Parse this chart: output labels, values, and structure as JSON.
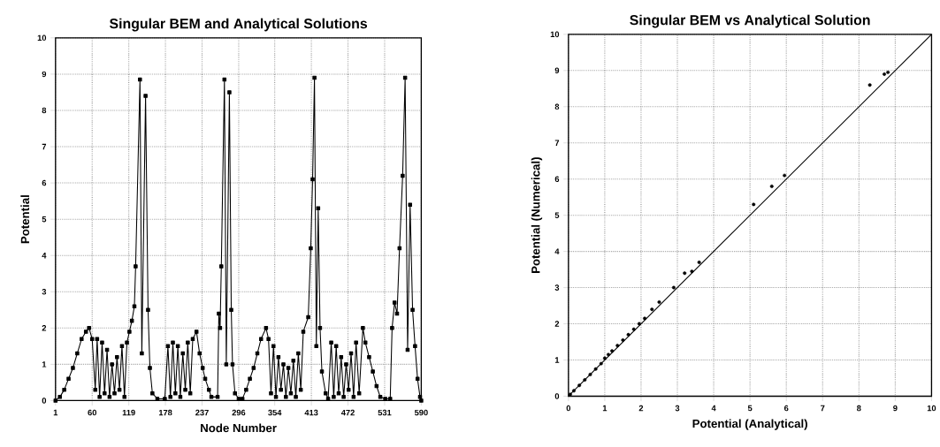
{
  "chart_data": [
    {
      "type": "line",
      "title": "Singular BEM and Analytical Solutions",
      "xlabel": "Node Number",
      "ylabel": "Potential",
      "xlim": [
        1,
        590
      ],
      "ylim": [
        0,
        10
      ],
      "xticks": [
        1,
        60,
        119,
        178,
        237,
        296,
        354,
        413,
        472,
        531,
        590
      ],
      "yticks": [
        0,
        1,
        2,
        3,
        4,
        5,
        6,
        7,
        8,
        9,
        10
      ],
      "grid": true,
      "marker": "square",
      "line_style": "solid",
      "series": [
        {
          "color": "#000000",
          "x": [
            1,
            8,
            15,
            22,
            29,
            36,
            43,
            50,
            55,
            60,
            65,
            68,
            72,
            76,
            80,
            84,
            88,
            92,
            96,
            100,
            104,
            108,
            112,
            116,
            120,
            124,
            128,
            130,
            137,
            140,
            146,
            150,
            153,
            157,
            165,
            177,
            182,
            186,
            190,
            194,
            198,
            202,
            206,
            210,
            214,
            218,
            222,
            228,
            233,
            238,
            242,
            248,
            252,
            262,
            264,
            266,
            268,
            273,
            276,
            281,
            284,
            286,
            290,
            296,
            302,
            308,
            314,
            320,
            326,
            332,
            340,
            344,
            348,
            352,
            356,
            360,
            364,
            368,
            372,
            376,
            380,
            384,
            388,
            392,
            396,
            400,
            408,
            412,
            415,
            418,
            421,
            424,
            427,
            430,
            436,
            440,
            445,
            449,
            453,
            457,
            461,
            465,
            469,
            473,
            477,
            481,
            485,
            490,
            496,
            500,
            506,
            512,
            518,
            524,
            532,
            540,
            543,
            547,
            551,
            555,
            560,
            564,
            568,
            572,
            576,
            580,
            584,
            588,
            590
          ],
          "values": [
            0,
            0.1,
            0.3,
            0.6,
            0.9,
            1.3,
            1.7,
            1.9,
            2.0,
            1.7,
            0.3,
            1.7,
            0.1,
            1.6,
            0.2,
            1.4,
            0.1,
            1.0,
            0.2,
            1.2,
            0.3,
            1.5,
            0.1,
            1.6,
            1.9,
            2.2,
            2.6,
            3.7,
            8.85,
            1.3,
            8.4,
            2.5,
            0.9,
            0.2,
            0.05,
            0.05,
            1.5,
            0.1,
            1.6,
            0.2,
            1.5,
            0.1,
            1.3,
            0.3,
            1.6,
            0.2,
            1.7,
            1.9,
            1.3,
            0.9,
            0.6,
            0.3,
            0.1,
            0.1,
            2.4,
            2.0,
            3.7,
            8.85,
            1.0,
            8.5,
            2.5,
            1.0,
            0.2,
            0.05,
            0.05,
            0.3,
            0.6,
            0.9,
            1.3,
            1.7,
            2.0,
            1.7,
            0.2,
            1.5,
            0.1,
            1.2,
            0.3,
            1.0,
            0.1,
            0.9,
            0.2,
            1.1,
            0.1,
            1.3,
            0.3,
            1.9,
            2.3,
            4.2,
            6.1,
            8.9,
            1.5,
            5.3,
            2.0,
            0.8,
            0.2,
            0.05,
            1.6,
            0.1,
            1.5,
            0.2,
            1.2,
            0.1,
            1.0,
            0.3,
            1.3,
            0.1,
            1.6,
            0.2,
            2.0,
            1.6,
            1.2,
            0.8,
            0.4,
            0.1,
            0.05,
            0.05,
            2.0,
            2.7,
            2.4,
            4.2,
            6.2,
            8.9,
            1.4,
            5.4,
            2.5,
            1.5,
            0.6,
            0.1,
            0
          ]
        }
      ]
    },
    {
      "type": "scatter",
      "title": "Singular BEM vs Analytical Solution",
      "xlabel": "Potential (Analytical)",
      "ylabel": "Potential (Numerical)",
      "xlim": [
        0,
        10
      ],
      "ylim": [
        0,
        10
      ],
      "xticks": [
        0,
        1,
        2,
        3,
        4,
        5,
        6,
        7,
        8,
        9,
        10
      ],
      "yticks": [
        0,
        1,
        2,
        3,
        4,
        5,
        6,
        7,
        8,
        9,
        10
      ],
      "grid": true,
      "marker": "circle",
      "series": [
        {
          "color": "#000000",
          "x": [
            0.05,
            0.15,
            0.3,
            0.45,
            0.6,
            0.75,
            0.9,
            1.0,
            1.1,
            1.2,
            1.35,
            1.5,
            1.65,
            1.8,
            1.95,
            2.1,
            2.3,
            2.5,
            2.9,
            3.2,
            3.4,
            3.6,
            5.1,
            5.6,
            5.95,
            8.3,
            8.7,
            8.8
          ],
          "values": [
            0.05,
            0.15,
            0.3,
            0.45,
            0.6,
            0.75,
            0.9,
            1.05,
            1.15,
            1.25,
            1.4,
            1.55,
            1.7,
            1.85,
            2.0,
            2.15,
            2.4,
            2.6,
            3.0,
            3.4,
            3.45,
            3.7,
            5.3,
            5.8,
            6.1,
            8.6,
            8.9,
            8.95
          ]
        },
        {
          "type": "line",
          "marker": "none",
          "color": "#000000",
          "x": [
            0,
            2,
            4,
            6,
            8,
            10
          ],
          "values": [
            0,
            2,
            4,
            6,
            8,
            10
          ]
        }
      ]
    }
  ]
}
